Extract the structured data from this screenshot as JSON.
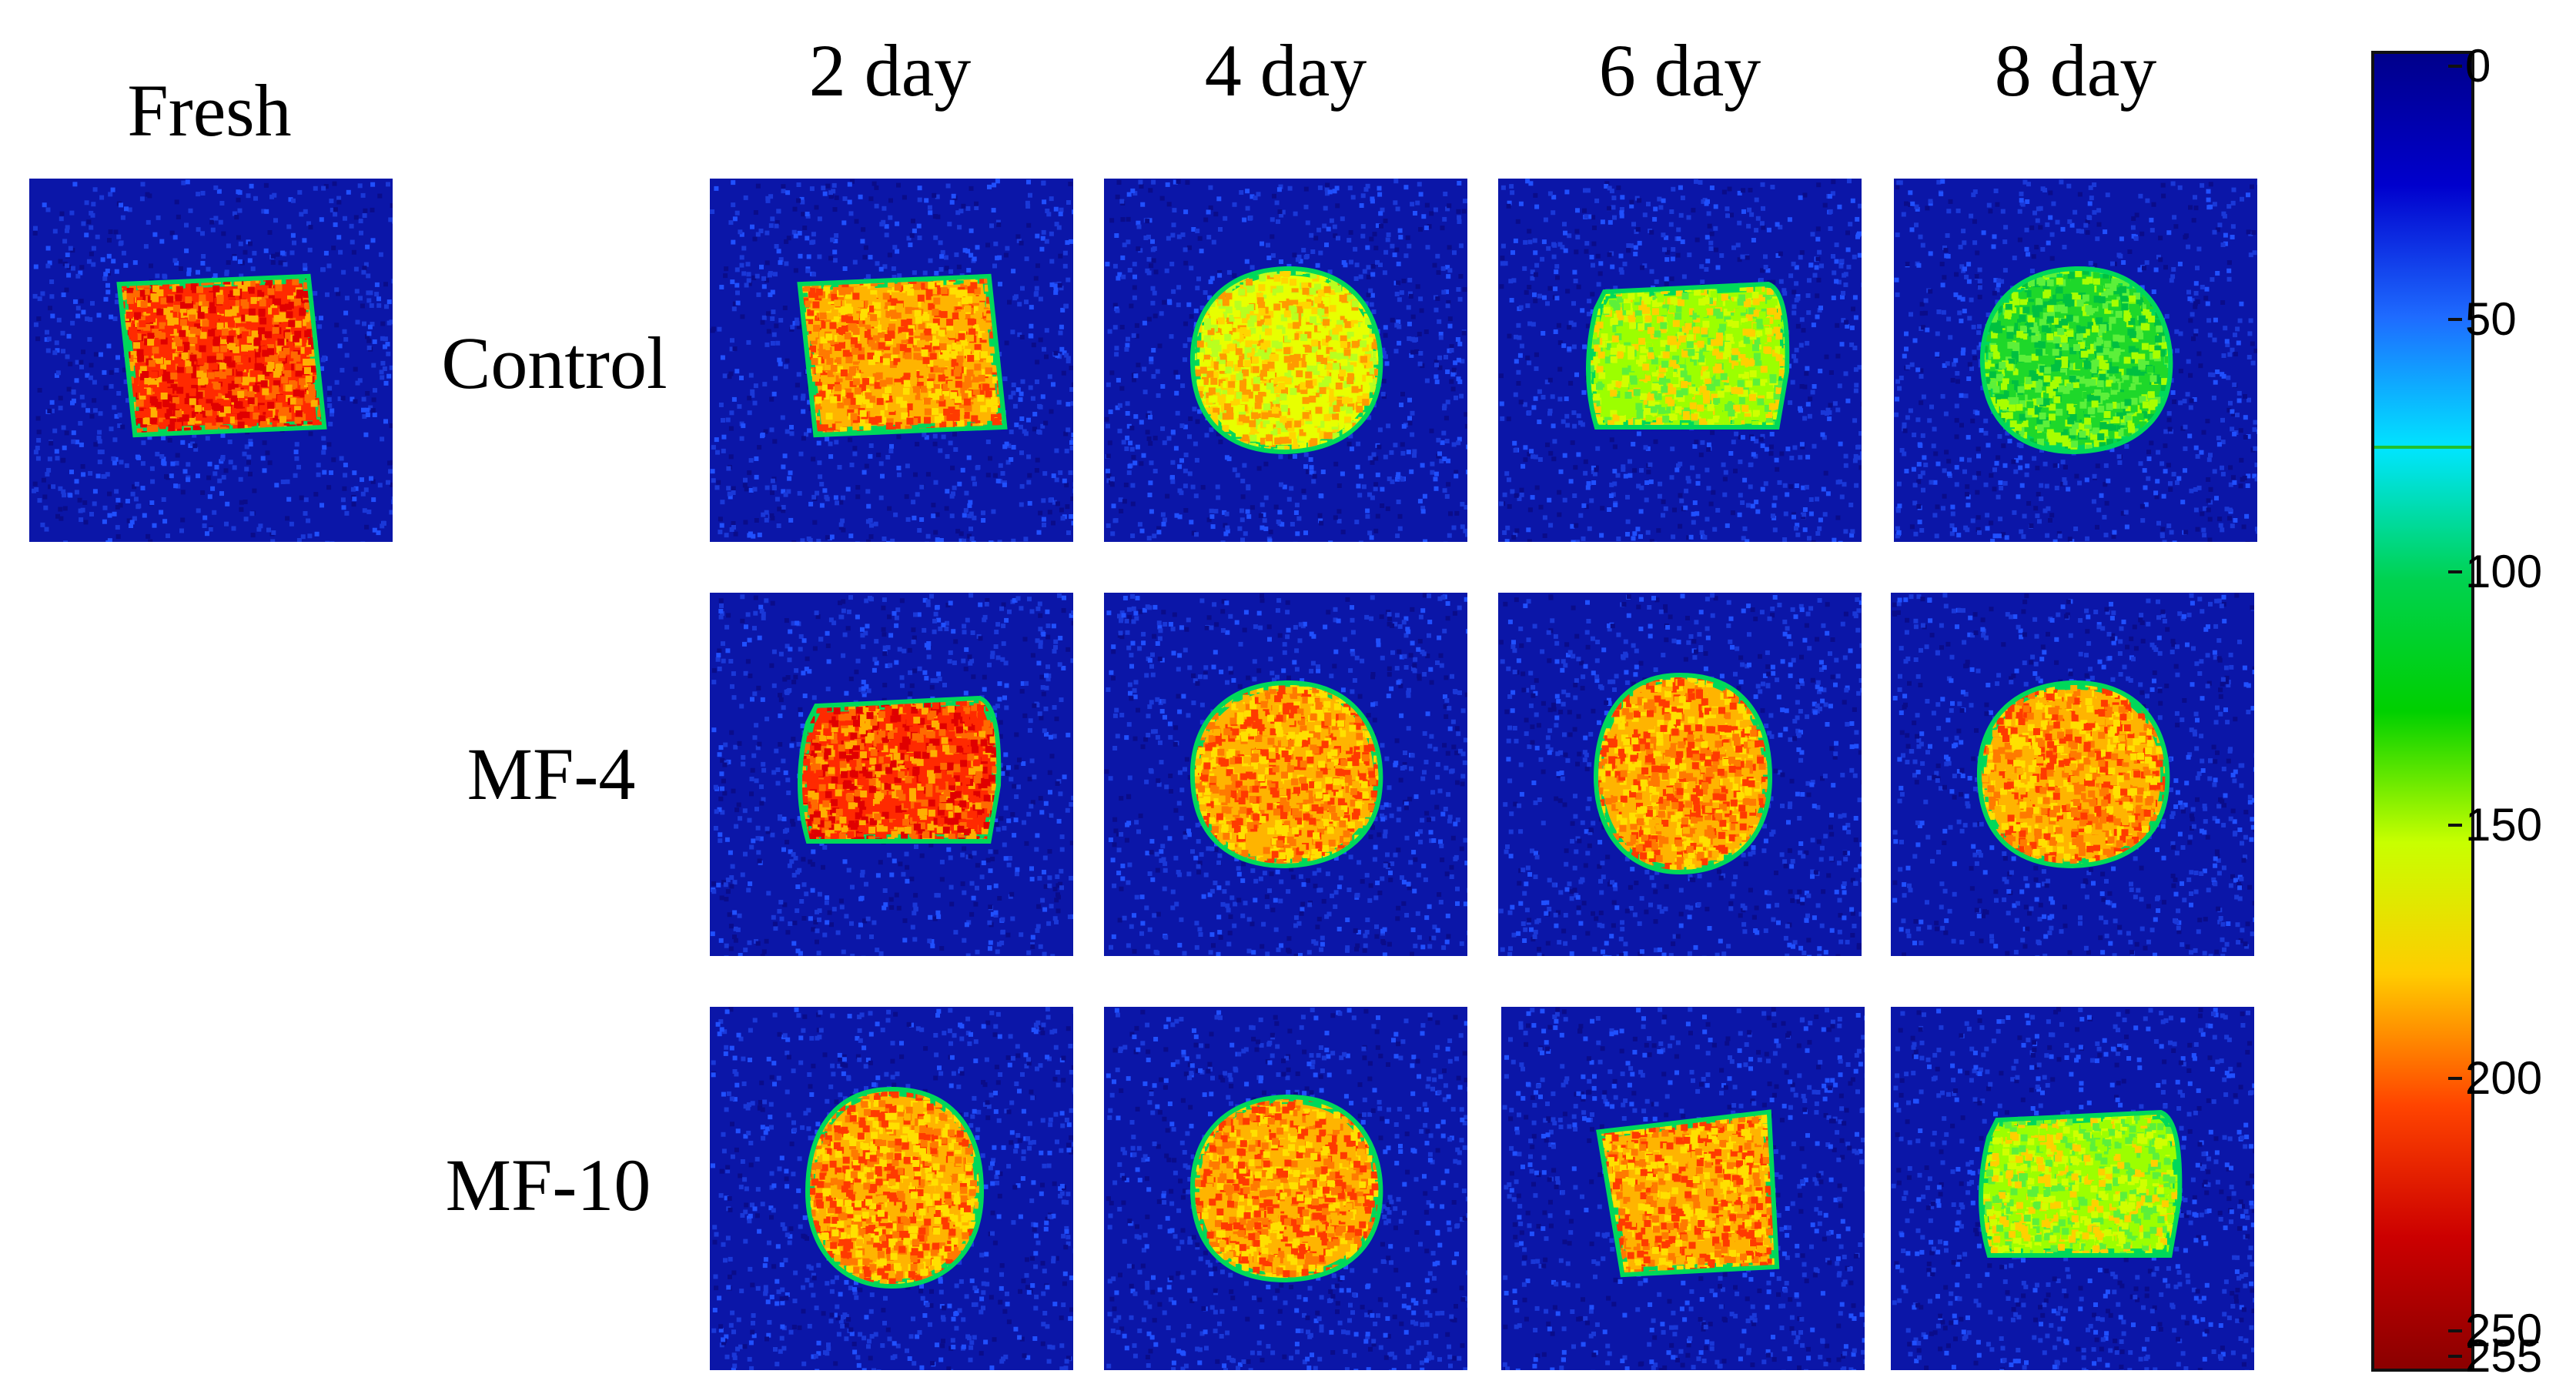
{
  "labels": {
    "fresh": "Fresh",
    "columns": [
      "2 day",
      "4 day",
      "6 day",
      "8 day"
    ],
    "rows": [
      "Control",
      "MF-4",
      "MF-10"
    ]
  },
  "colorbar": {
    "ticks": [
      "0",
      "50",
      "100",
      "150",
      "200",
      "250",
      "255"
    ],
    "tick_values": [
      0,
      50,
      100,
      150,
      200,
      250,
      255
    ],
    "max": 255,
    "marker_value": 75,
    "colors": [
      "#00008b",
      "#0000cd",
      "#1e6bff",
      "#00e5ff",
      "#00d24f",
      "#00d000",
      "#c8ff00",
      "#ffcc00",
      "#ff4400",
      "#cc0000",
      "#8b0000"
    ]
  },
  "panels": [
    {
      "name": "fresh",
      "shape": "square",
      "tone": "red"
    },
    {
      "name": "control-2-day",
      "shape": "square",
      "tone": "orange"
    },
    {
      "name": "control-4-day",
      "shape": "round",
      "tone": "yellow"
    },
    {
      "name": "control-6-day",
      "shape": "rect",
      "tone": "yellowgreen"
    },
    {
      "name": "control-8-day",
      "shape": "round",
      "tone": "green"
    },
    {
      "name": "mf-4-2-day",
      "shape": "rect",
      "tone": "red"
    },
    {
      "name": "mf-4-4-day",
      "shape": "round",
      "tone": "orange"
    },
    {
      "name": "mf-4-6-day",
      "shape": "oval",
      "tone": "orange"
    },
    {
      "name": "mf-4-8-day",
      "shape": "round",
      "tone": "orange"
    },
    {
      "name": "mf-10-2-day",
      "shape": "oval",
      "tone": "orange"
    },
    {
      "name": "mf-10-4-day",
      "shape": "round",
      "tone": "orange"
    },
    {
      "name": "mf-10-6-day",
      "shape": "trapezoid",
      "tone": "orange"
    },
    {
      "name": "mf-10-8-day",
      "shape": "rect",
      "tone": "yellowgreen"
    }
  ]
}
